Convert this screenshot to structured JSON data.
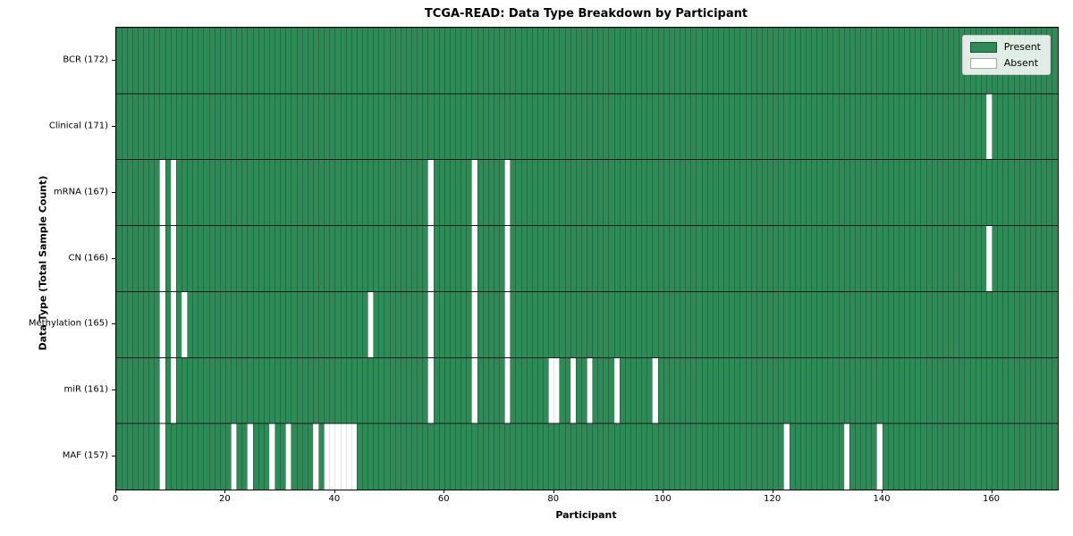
{
  "title": "TCGA-READ: Data Type Breakdown by Participant",
  "chart_data": {
    "type": "heatmap",
    "title": "TCGA-READ: Data Type Breakdown by Participant",
    "xlabel": "Participant",
    "ylabel": "Data Type (Total Sample Count)",
    "x_ticks": [
      0,
      20,
      40,
      60,
      80,
      100,
      120,
      140,
      160
    ],
    "xlim": [
      0,
      172
    ],
    "n_participants": 172,
    "grid": true,
    "legend_position": "upper right",
    "legend": [
      {
        "label": "Present",
        "color": "#2e8b57"
      },
      {
        "label": "Absent",
        "color": "#ffffff"
      }
    ],
    "colors": {
      "present": "#2e8b57",
      "absent": "#ffffff",
      "cell_edge_on_present": "#1b4d32",
      "cell_edge_on_absent": "#c9c9c9",
      "row_separator": "#1a1a1a",
      "axis": "#000000"
    },
    "rows": [
      {
        "label": "BCR (172)",
        "name": "BCR",
        "present_count": 172,
        "absent_participants": []
      },
      {
        "label": "Clinical (171)",
        "name": "Clinical",
        "present_count": 171,
        "absent_participants": [
          159
        ]
      },
      {
        "label": "mRNA (167)",
        "name": "mRNA",
        "present_count": 167,
        "absent_participants": [
          8,
          10,
          57,
          65,
          71
        ]
      },
      {
        "label": "CN (166)",
        "name": "CN",
        "present_count": 166,
        "absent_participants": [
          8,
          10,
          57,
          65,
          71,
          159
        ]
      },
      {
        "label": "Methylation (165)",
        "name": "Methylation",
        "present_count": 165,
        "absent_participants": [
          8,
          10,
          12,
          46,
          57,
          65,
          71
        ]
      },
      {
        "label": "miR (161)",
        "name": "miR",
        "present_count": 161,
        "absent_participants": [
          8,
          10,
          57,
          65,
          71,
          79,
          80,
          83,
          86,
          91,
          98
        ]
      },
      {
        "label": "MAF (157)",
        "name": "MAF",
        "present_count": 157,
        "absent_participants": [
          8,
          21,
          24,
          28,
          31,
          36,
          38,
          39,
          40,
          41,
          42,
          43,
          122,
          133,
          139
        ]
      }
    ]
  }
}
